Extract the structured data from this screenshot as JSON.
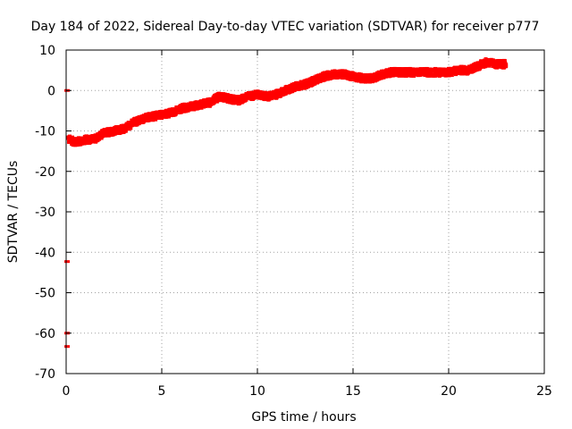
{
  "chart_data": {
    "type": "scatter",
    "title": "Day 184 of 2022, Sidereal Day-to-day VTEC variation (SDTVAR) for receiver p777",
    "xlabel": "GPS time / hours",
    "ylabel": "SDTVAR / TECUs",
    "xlim": [
      0,
      25
    ],
    "ylim": [
      -70,
      10
    ],
    "x_ticks": [
      "0",
      "5",
      "10",
      "15",
      "20",
      "25"
    ],
    "y_ticks": [
      "10",
      "0",
      "-10",
      "-20",
      "-30",
      "-40",
      "-50",
      "-60",
      "-70"
    ],
    "grid": true,
    "series_color": "#ff0000",
    "outliers": [
      {
        "x": 0.05,
        "y": 0.0
      },
      {
        "x": 0.05,
        "y": -42.3
      },
      {
        "x": 0.05,
        "y": -60.0
      },
      {
        "x": 0.05,
        "y": -63.3
      }
    ],
    "main_band": {
      "x": [
        0.1,
        0.5,
        1.0,
        1.5,
        2.0,
        2.5,
        3.0,
        3.5,
        4.0,
        4.5,
        5.0,
        5.5,
        6.0,
        6.5,
        7.0,
        7.5,
        8.0,
        8.5,
        9.0,
        9.5,
        10.0,
        10.5,
        11.0,
        11.5,
        12.0,
        12.5,
        13.0,
        13.5,
        14.0,
        14.5,
        15.0,
        15.5,
        16.0,
        16.5,
        17.0,
        17.5,
        18.0,
        18.5,
        19.0,
        19.5,
        20.0,
        20.5,
        21.0,
        21.5,
        22.0,
        22.5,
        23.0
      ],
      "y": [
        -12.0,
        -12.8,
        -12.2,
        -12.0,
        -10.5,
        -10.0,
        -9.5,
        -8.0,
        -7.0,
        -6.5,
        -6.0,
        -5.5,
        -4.5,
        -4.0,
        -3.5,
        -3.0,
        -1.5,
        -2.0,
        -2.5,
        -1.5,
        -1.0,
        -1.5,
        -1.0,
        0.0,
        1.0,
        1.5,
        2.5,
        3.5,
        4.0,
        4.0,
        3.5,
        3.0,
        3.0,
        4.0,
        4.5,
        4.5,
        4.5,
        4.5,
        4.5,
        4.5,
        4.5,
        5.0,
        5.0,
        6.0,
        7.0,
        6.5,
        6.5
      ],
      "spread": 1.0
    }
  }
}
